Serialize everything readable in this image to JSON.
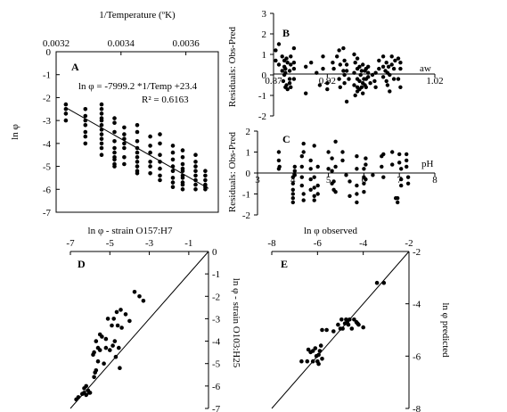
{
  "chart_data": [
    {
      "panel": "A",
      "type": "scatter",
      "xlabel": "1/Temperature (ºK)",
      "ylabel": "ln φ",
      "xlim": [
        0.0032,
        0.0037
      ],
      "ylim": [
        -7,
        0
      ],
      "xticks": [
        "0.0032",
        "0.0034",
        "0.0036"
      ],
      "yticks": [
        "0",
        "-1",
        "-2",
        "-3",
        "-4",
        "-5",
        "-6",
        "-7"
      ],
      "annotations": [
        "ln φ = -7999.2 *1/Temp +23.4",
        "R² = 0.6163"
      ],
      "fit_line": {
        "x": [
          0.00323,
          0.00367
        ],
        "y": [
          -2.44,
          -5.96
        ]
      },
      "points": {
        "x": [
          0.00323,
          0.00323,
          0.00323,
          0.00323,
          0.00329,
          0.00329,
          0.00329,
          0.00329,
          0.00329,
          0.00329,
          0.00329,
          0.00334,
          0.00334,
          0.00334,
          0.00334,
          0.00334,
          0.00334,
          0.00334,
          0.00334,
          0.00334,
          0.00334,
          0.00334,
          0.00334,
          0.00338,
          0.00338,
          0.00338,
          0.00338,
          0.00338,
          0.00338,
          0.00338,
          0.00338,
          0.00338,
          0.00338,
          0.00341,
          0.00341,
          0.00341,
          0.00341,
          0.00341,
          0.00341,
          0.00341,
          0.00345,
          0.00345,
          0.00345,
          0.00345,
          0.00345,
          0.00345,
          0.00345,
          0.00345,
          0.00345,
          0.00345,
          0.00349,
          0.00349,
          0.00349,
          0.00349,
          0.00349,
          0.00349,
          0.00352,
          0.00352,
          0.00352,
          0.00352,
          0.00352,
          0.00352,
          0.00352,
          0.00356,
          0.00356,
          0.00356,
          0.00356,
          0.00356,
          0.00356,
          0.00356,
          0.00356,
          0.00359,
          0.00359,
          0.00359,
          0.00359,
          0.00359,
          0.00359,
          0.00359,
          0.00359,
          0.00359,
          0.00359,
          0.00363,
          0.00363,
          0.00363,
          0.00363,
          0.00363,
          0.00363,
          0.00363,
          0.00363,
          0.00366,
          0.00366,
          0.00366,
          0.00366,
          0.00366,
          0.00366
        ],
        "y": [
          -2.3,
          -2.5,
          -2.7,
          -3.0,
          -2.5,
          -2.8,
          -3.0,
          -3.2,
          -3.5,
          -3.7,
          -4.0,
          -2.3,
          -2.5,
          -2.7,
          -2.9,
          -3.0,
          -3.2,
          -3.4,
          -3.6,
          -3.8,
          -4.0,
          -4.2,
          -4.5,
          -2.9,
          -3.1,
          -3.5,
          -3.9,
          -4.2,
          -4.4,
          -4.6,
          -4.7,
          -4.9,
          -5.0,
          -3.3,
          -3.6,
          -3.8,
          -4.0,
          -4.2,
          -4.6,
          -4.9,
          -3.2,
          -3.5,
          -3.9,
          -4.2,
          -4.4,
          -4.6,
          -4.8,
          -5.0,
          -5.2,
          -5.3,
          -3.7,
          -4.1,
          -4.4,
          -4.8,
          -5.0,
          -5.3,
          -3.6,
          -4.0,
          -4.5,
          -4.8,
          -5.1,
          -5.4,
          -5.6,
          -4.1,
          -4.4,
          -4.7,
          -5.0,
          -5.2,
          -5.5,
          -5.7,
          -5.9,
          -4.3,
          -4.6,
          -4.9,
          -5.1,
          -5.2,
          -5.4,
          -5.5,
          -5.7,
          -5.8,
          -6.0,
          -4.5,
          -4.8,
          -5.0,
          -5.2,
          -5.4,
          -5.6,
          -5.8,
          -6.0,
          -5.2,
          -5.4,
          -5.6,
          -5.8,
          -5.9,
          -6.0
        ]
      }
    },
    {
      "panel": "B",
      "type": "scatter",
      "xlabel": "aw",
      "ylabel": "Residuals: Obs-Pred",
      "xlim": [
        0.87,
        1.02
      ],
      "ylim": [
        -2,
        3
      ],
      "xticks": [
        "0.87",
        "0.92",
        "1.02"
      ],
      "yticks": [
        "3",
        "2",
        "1",
        "0",
        "-1",
        "-2"
      ],
      "points": {
        "x": [
          0.872,
          0.872,
          0.875,
          0.875,
          0.878,
          0.878,
          0.879,
          0.88,
          0.88,
          0.88,
          0.881,
          0.881,
          0.881,
          0.882,
          0.882,
          0.883,
          0.883,
          0.885,
          0.885,
          0.885,
          0.886,
          0.886,
          0.886,
          0.889,
          0.889,
          0.889,
          0.889,
          0.9,
          0.9,
          0.905,
          0.91,
          0.913,
          0.916,
          0.916,
          0.92,
          0.92,
          0.925,
          0.926,
          0.929,
          0.931,
          0.931,
          0.932,
          0.932,
          0.935,
          0.935,
          0.936,
          0.936,
          0.936,
          0.938,
          0.938,
          0.938,
          0.94,
          0.945,
          0.945,
          0.945,
          0.946,
          0.946,
          0.948,
          0.948,
          0.948,
          0.948,
          0.948,
          0.95,
          0.95,
          0.95,
          0.951,
          0.952,
          0.952,
          0.953,
          0.953,
          0.953,
          0.954,
          0.955,
          0.955,
          0.956,
          0.956,
          0.956,
          0.958,
          0.958,
          0.958,
          0.96,
          0.962,
          0.964,
          0.965,
          0.965,
          0.968,
          0.968,
          0.972,
          0.972,
          0.972,
          0.974,
          0.975,
          0.975,
          0.976,
          0.976,
          0.977,
          0.978,
          0.978,
          0.98,
          0.98,
          0.982,
          0.982,
          0.983,
          0.986,
          0.986,
          0.988,
          0.988,
          0.988
        ],
        "y": [
          0.7,
          1.2,
          1.5,
          0.5,
          0.2,
          0.9,
          -0.3,
          0.0,
          0.4,
          0.7,
          -0.6,
          0.1,
          0.3,
          -0.5,
          0.8,
          -0.7,
          0.6,
          -0.2,
          0.2,
          -0.4,
          0.9,
          0.5,
          -0.6,
          0.3,
          -0.2,
          1.3,
          0.6,
          0.4,
          -0.9,
          0.6,
          0.1,
          -0.5,
          0.9,
          0.3,
          -0.7,
          -0.4,
          0.6,
          0.3,
          0.9,
          1.2,
          -0.2,
          0.5,
          -0.6,
          0.2,
          1.3,
          0.0,
          0.7,
          -0.4,
          -1.3,
          0.2,
          0.5,
          -0.2,
          0.1,
          -0.5,
          1.0,
          0.6,
          -1.0,
          -0.2,
          -0.6,
          0.3,
          0.8,
          -0.8,
          -0.3,
          0.4,
          -0.7,
          0.0,
          -0.6,
          0.2,
          0.5,
          -0.4,
          -0.9,
          -0.2,
          0.2,
          -0.5,
          0.3,
          -0.2,
          -0.6,
          0.4,
          -0.1,
          0.1,
          -0.4,
          0.0,
          -0.3,
          0.1,
          -0.6,
          0.3,
          0.7,
          -0.1,
          0.4,
          0.9,
          0.2,
          -0.3,
          0.6,
          0.1,
          -0.5,
          0.4,
          0.0,
          -0.8,
          0.5,
          0.9,
          -0.2,
          0.3,
          0.7,
          0.8,
          -0.2,
          -0.6,
          0.3,
          0.6
        ]
      }
    },
    {
      "panel": "C",
      "type": "scatter",
      "xlabel": "pH",
      "ylabel": "Residuals: Obs-Pred",
      "xlim": [
        3,
        8
      ],
      "ylim": [
        -2,
        2
      ],
      "xticks": [
        "3",
        "4",
        "5",
        "6",
        "7",
        "8"
      ],
      "yticks": [
        "2",
        "1",
        "0",
        "-1",
        "-2"
      ],
      "points": {
        "x": [
          3.6,
          3.6,
          3.6,
          3.62,
          4.0,
          4.0,
          4.0,
          4.0,
          4.0,
          4.0,
          4.05,
          4.05,
          4.05,
          4.25,
          4.25,
          4.25,
          4.25,
          4.3,
          4.3,
          4.3,
          4.3,
          4.5,
          4.5,
          4.5,
          4.5,
          4.6,
          4.6,
          4.6,
          4.6,
          4.6,
          4.7,
          4.7,
          4.7,
          5.0,
          5.0,
          5.1,
          5.1,
          5.1,
          5.15,
          5.15,
          5.2,
          5.2,
          5.2,
          5.4,
          5.4,
          5.5,
          5.6,
          5.6,
          5.8,
          5.8,
          5.8,
          5.8,
          5.8,
          6.0,
          6.0,
          6.0,
          6.0,
          6.05,
          6.05,
          6.05,
          6.25,
          6.5,
          6.5,
          6.55,
          6.55,
          6.8,
          6.8,
          6.9,
          6.95,
          6.95,
          7.0,
          7.0,
          7.05,
          7.05,
          7.05,
          7.2,
          7.2,
          7.2,
          7.25,
          7.25
        ],
        "y": [
          1.0,
          0.6,
          0.2,
          0.3,
          -0.2,
          -0.5,
          -0.8,
          -1.0,
          -1.2,
          -1.4,
          0.3,
          0.1,
          -0.1,
          0.8,
          0.3,
          -0.2,
          -0.6,
          1.4,
          1.0,
          -1.3,
          -1.0,
          0.6,
          0.2,
          -0.3,
          -0.8,
          1.3,
          -0.2,
          -0.7,
          -1.1,
          -1.3,
          0.3,
          -0.6,
          -1.0,
          1.0,
          0.2,
          0.1,
          0.7,
          -0.5,
          -0.4,
          -0.8,
          1.5,
          0.3,
          -0.9,
          1.0,
          0.6,
          -0.1,
          -0.4,
          -1.1,
          0.8,
          0.2,
          -0.6,
          -1.0,
          -1.4,
          0.2,
          -0.2,
          -0.5,
          -0.9,
          0.7,
          0.4,
          -0.3,
          -0.1,
          0.8,
          0.3,
          0.9,
          -0.2,
          1.0,
          0.4,
          -1.2,
          -1.2,
          -1.4,
          0.9,
          0.5,
          0.2,
          -0.3,
          -0.6,
          0.9,
          0.6,
          0.3,
          -0.2,
          -0.5
        ]
      }
    },
    {
      "panel": "D",
      "type": "scatter",
      "xlabel": "ln φ - strain O157:H7",
      "ylabel": "ln φ - strain O103:H25",
      "xlim": [
        -7,
        0
      ],
      "ylim": [
        -7,
        0
      ],
      "xticks": [
        "-7",
        "-5",
        "-3",
        "-1"
      ],
      "yticks": [
        "0",
        "-1",
        "-2",
        "-3",
        "-4",
        "-5",
        "-6",
        "-7"
      ],
      "identity_line": true,
      "points": {
        "x": [
          -6.7,
          -6.6,
          -6.4,
          -6.3,
          -6.3,
          -6.2,
          -6.2,
          -6.1,
          -6.05,
          -6.0,
          -5.85,
          -5.8,
          -5.8,
          -5.75,
          -5.7,
          -5.7,
          -5.6,
          -5.6,
          -5.5,
          -5.5,
          -5.4,
          -5.3,
          -5.2,
          -5.2,
          -5.1,
          -5.0,
          -4.9,
          -4.85,
          -4.8,
          -4.75,
          -4.7,
          -4.65,
          -4.6,
          -4.55,
          -4.5,
          -4.45,
          -4.4,
          -4.2,
          -4.0,
          -3.75,
          -3.5,
          -3.3
        ],
        "y": [
          -6.6,
          -6.5,
          -6.35,
          -6.1,
          -6.3,
          -6.0,
          -6.4,
          -6.2,
          -6.3,
          -6.3,
          -4.6,
          -5.6,
          -4.5,
          -5.4,
          -4.0,
          -5.3,
          -4.9,
          -4.3,
          -4.4,
          -3.7,
          -3.8,
          -5.0,
          -3.9,
          -4.3,
          -3.0,
          -4.4,
          -3.3,
          -4.2,
          -3.0,
          -4.0,
          -4.7,
          -2.7,
          -3.3,
          -4.3,
          -5.2,
          -2.6,
          -3.4,
          -2.8,
          -3.1,
          -1.8,
          -2.0,
          -2.2
        ]
      }
    },
    {
      "panel": "E",
      "type": "scatter",
      "xlabel": "ln φ observed",
      "ylabel": "ln φ predicted",
      "xlim": [
        -8,
        -2
      ],
      "ylim": [
        -8,
        -2
      ],
      "xticks": [
        "-8",
        "-6",
        "-4",
        "-2"
      ],
      "yticks": [
        "-2",
        "-4",
        "-6",
        "-8"
      ],
      "identity_line": true,
      "points": {
        "x": [
          -6.7,
          -6.45,
          -6.4,
          -6.3,
          -6.2,
          -6.2,
          -6.1,
          -6.05,
          -6.0,
          -5.95,
          -5.95,
          -5.9,
          -5.85,
          -5.8,
          -5.8,
          -5.6,
          -5.3,
          -5.1,
          -5.0,
          -4.95,
          -4.9,
          -4.8,
          -4.75,
          -4.7,
          -4.65,
          -4.6,
          -4.5,
          -4.4,
          -4.3,
          -4.25,
          -4.2,
          -4.0,
          -3.4,
          -3.1
        ],
        "y": [
          -6.2,
          -6.2,
          -5.75,
          -5.85,
          -6.2,
          -5.8,
          -5.7,
          -6.0,
          -6.2,
          -6.3,
          -5.95,
          -5.8,
          -5.6,
          -6.1,
          -5.0,
          -5.0,
          -5.05,
          -4.8,
          -4.95,
          -4.6,
          -4.95,
          -4.75,
          -4.6,
          -4.7,
          -4.8,
          -4.6,
          -4.95,
          -4.6,
          -4.7,
          -4.75,
          -4.8,
          -4.9,
          -3.2,
          -3.2
        ]
      }
    }
  ]
}
